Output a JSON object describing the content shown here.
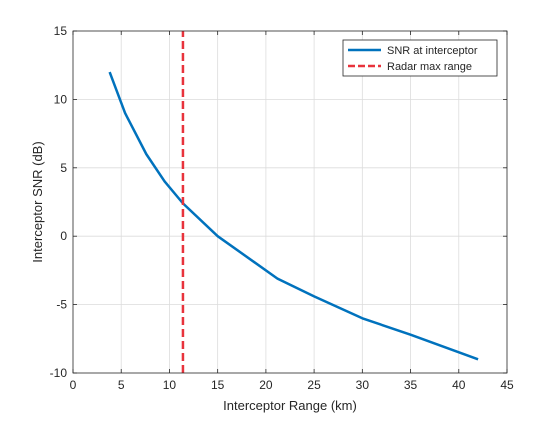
{
  "chart_data": {
    "type": "line",
    "xlabel": "Interceptor Range (km)",
    "ylabel": "Interceptor SNR (dB)",
    "xlim": [
      0,
      45
    ],
    "ylim": [
      -10,
      15
    ],
    "x_ticks": [
      0,
      5,
      10,
      15,
      20,
      25,
      30,
      35,
      40,
      45
    ],
    "y_ticks": [
      -10,
      -5,
      0,
      5,
      10,
      15
    ],
    "grid": true,
    "legend_position": "top-right",
    "series": [
      {
        "name": "SNR at interceptor",
        "color": "#0072BD",
        "style": "solid",
        "x": [
          3.8,
          5.4,
          7.6,
          9.5,
          11.4,
          15,
          21.2,
          25,
          30,
          35,
          42
        ],
        "y": [
          12,
          9,
          6,
          4,
          2.4,
          0,
          -3.1,
          -4.4,
          -6,
          -7.2,
          -9
        ]
      },
      {
        "name": "Radar max range",
        "color": "#E8333C",
        "style": "dashed",
        "x": [
          11.4,
          11.4
        ],
        "y": [
          -10,
          15
        ]
      }
    ]
  }
}
